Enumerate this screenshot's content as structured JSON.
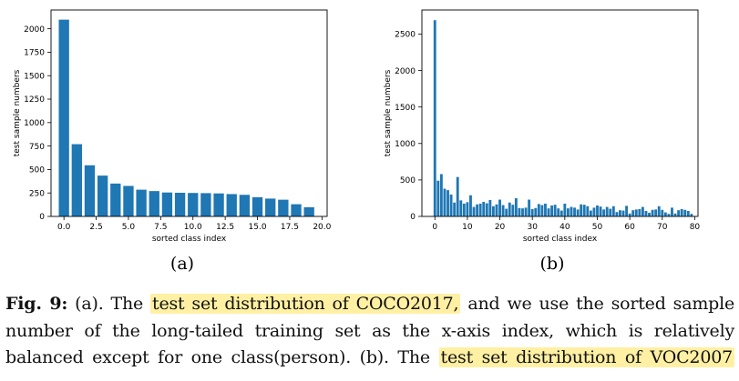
{
  "chart_data": [
    {
      "type": "bar",
      "panel_label": "(a)",
      "xlabel": "sorted class index",
      "ylabel": "test sample numbers",
      "xlim": [
        -1,
        20.4
      ],
      "ylim": [
        0,
        2200
      ],
      "xticks": [
        "0.0",
        "2.5",
        "5.0",
        "7.5",
        "10.0",
        "12.5",
        "15.0",
        "17.5",
        "20.0"
      ],
      "xtick_values": [
        0,
        2.5,
        5,
        7.5,
        10,
        12.5,
        15,
        17.5,
        20
      ],
      "yticks": [
        "0",
        "250",
        "500",
        "750",
        "1000",
        "1250",
        "1500",
        "1750",
        "2000"
      ],
      "ytick_values": [
        0,
        250,
        500,
        750,
        1000,
        1250,
        1500,
        1750,
        2000
      ],
      "x": [
        0,
        1,
        2,
        3,
        4,
        5,
        6,
        7,
        8,
        9,
        10,
        11,
        12,
        13,
        14,
        15,
        16,
        17,
        18,
        19
      ],
      "values": [
        2097,
        770,
        545,
        435,
        350,
        325,
        285,
        270,
        255,
        252,
        250,
        248,
        245,
        238,
        230,
        205,
        190,
        178,
        130,
        98
      ],
      "bar_width": 0.8,
      "color": "#1f77b4"
    },
    {
      "type": "bar",
      "panel_label": "(b)",
      "xlabel": "sorted class index",
      "ylabel": "test sample numbers",
      "xlim": [
        -4,
        81
      ],
      "ylim": [
        0,
        2830
      ],
      "xticks": [
        "0",
        "10",
        "20",
        "30",
        "40",
        "50",
        "60",
        "70",
        "80"
      ],
      "xtick_values": [
        0,
        10,
        20,
        30,
        40,
        50,
        60,
        70,
        80
      ],
      "yticks": [
        "0",
        "500",
        "1000",
        "1500",
        "2000",
        "2500"
      ],
      "ytick_values": [
        0,
        500,
        1000,
        1500,
        2000,
        2500
      ],
      "x": [
        0,
        1,
        2,
        3,
        4,
        5,
        6,
        7,
        8,
        9,
        10,
        11,
        12,
        13,
        14,
        15,
        16,
        17,
        18,
        19,
        20,
        21,
        22,
        23,
        24,
        25,
        26,
        27,
        28,
        29,
        30,
        31,
        32,
        33,
        34,
        35,
        36,
        37,
        38,
        39,
        40,
        41,
        42,
        43,
        44,
        45,
        46,
        47,
        48,
        49,
        50,
        51,
        52,
        53,
        54,
        55,
        56,
        57,
        58,
        59,
        60,
        61,
        62,
        63,
        64,
        65,
        66,
        67,
        68,
        69,
        70,
        71,
        72,
        73,
        74,
        75,
        76,
        77,
        78,
        79
      ],
      "values": [
        2690,
        490,
        580,
        380,
        360,
        300,
        190,
        540,
        220,
        175,
        195,
        290,
        130,
        165,
        175,
        200,
        180,
        225,
        140,
        165,
        230,
        155,
        105,
        190,
        160,
        250,
        115,
        110,
        120,
        230,
        100,
        115,
        170,
        155,
        175,
        110,
        150,
        160,
        110,
        80,
        175,
        110,
        130,
        120,
        95,
        165,
        160,
        140,
        80,
        120,
        150,
        135,
        95,
        130,
        105,
        140,
        60,
        85,
        80,
        145,
        40,
        85,
        95,
        100,
        130,
        75,
        50,
        90,
        95,
        140,
        90,
        55,
        35,
        120,
        40,
        85,
        100,
        90,
        75,
        35
      ],
      "bar_width": 0.8,
      "color": "#1f77b4"
    }
  ],
  "caption": {
    "label": "Fig. 9:",
    "line1_a": "(a). The",
    "line1_hl": "test set distribution of COCO2017,",
    "line1_b": "and we use the sorted sample",
    "line2": "number of the long-tailed training set as the x-axis index, which is relatively",
    "line3_a": "balanced except for one class(person). (b). The",
    "line3_hl": "test set distribution of VOC2007"
  }
}
